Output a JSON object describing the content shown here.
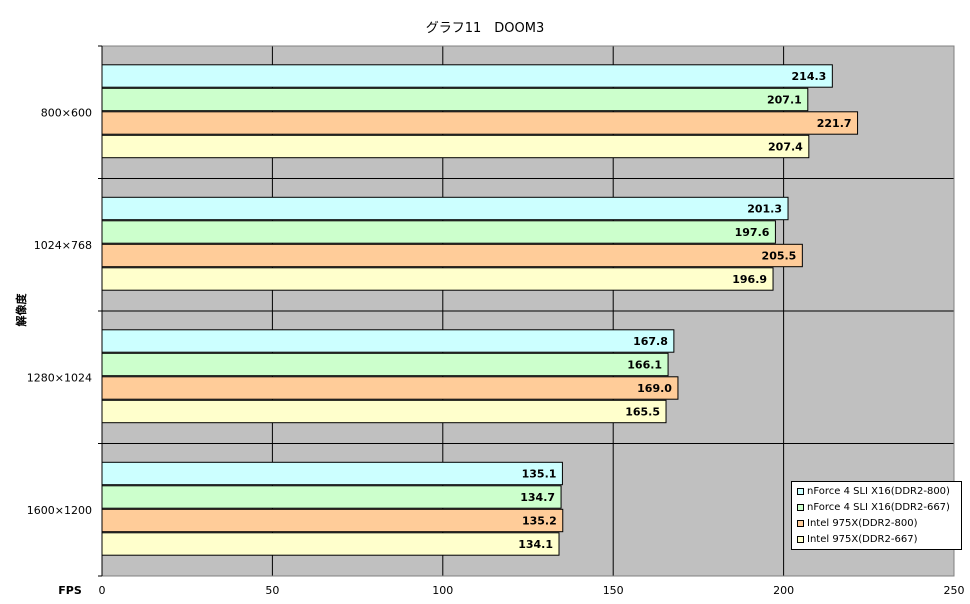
{
  "chart_data": {
    "type": "bar",
    "orientation": "horizontal",
    "title": "グラフ11　DOOM3",
    "xlabel": "FPS",
    "ylabel": "解像度",
    "xlim": [
      0,
      250
    ],
    "xticks": [
      "0",
      "50",
      "100",
      "150",
      "200",
      "250"
    ],
    "categories": [
      "800×600",
      "1024×768",
      "1280×1024",
      "1600×1200"
    ],
    "series": [
      {
        "name": "nForce 4 SLI X16(DDR2-800)",
        "color": "#CCFFFF",
        "values": [
          214.3,
          201.3,
          167.8,
          135.1
        ]
      },
      {
        "name": "nForce 4 SLI X16(DDR2-667)",
        "color": "#CCFFCC",
        "values": [
          207.1,
          197.6,
          166.1,
          134.7
        ]
      },
      {
        "name": "Intel 975X(DDR2-800)",
        "color": "#FFCC99",
        "values": [
          221.7,
          205.5,
          169.0,
          135.2
        ]
      },
      {
        "name": "Intel 975X(DDR2-667)",
        "color": "#FFFFCC",
        "values": [
          207.4,
          196.9,
          165.5,
          134.1
        ]
      }
    ],
    "value_labels": [
      [
        "214.3",
        "201.3",
        "167.8",
        "135.1"
      ],
      [
        "207.1",
        "197.6",
        "166.1",
        "134.7"
      ],
      [
        "221.7",
        "205.5",
        "169.0",
        "135.2"
      ],
      [
        "207.4",
        "196.9",
        "165.5",
        "134.1"
      ]
    ],
    "plot_background": "#C0C0C0",
    "grid": true,
    "legend_position": "bottom-right"
  }
}
